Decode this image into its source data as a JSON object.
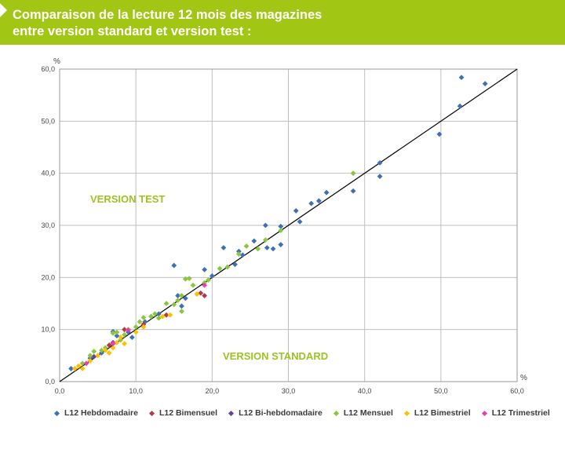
{
  "header": {
    "title_line1": "Comparaison de la lecture 12 mois des magazines",
    "title_line2": "entre version standard et version test :"
  },
  "annotations": {
    "version_test": "VERSION TEST",
    "version_standard": "VERSION STANDARD"
  },
  "colors": {
    "header_bg": "#a2c614",
    "annotation": "#9bc322",
    "grid": "#bfbfbf",
    "reference_line": "#000000"
  },
  "chart_data": {
    "type": "scatter",
    "xlabel": "%",
    "ylabel": "%",
    "xlim": [
      0,
      60
    ],
    "ylim": [
      0,
      60
    ],
    "x_ticks": [
      "0,0",
      "10,0",
      "20,0",
      "30,0",
      "40,0",
      "50,0",
      "60,0"
    ],
    "y_ticks": [
      "0,0",
      "10,0",
      "20,0",
      "30,0",
      "40,0",
      "50,0",
      "60,0"
    ],
    "grid": true,
    "reference_line": [
      [
        0,
        0
      ],
      [
        60,
        60
      ]
    ],
    "legend_position": "bottom",
    "series": [
      {
        "name": "L12 Hebdomadaire",
        "color": "#3f6fb5",
        "points": [
          [
            1.5,
            2.5
          ],
          [
            4,
            4.5
          ],
          [
            5.5,
            5.5
          ],
          [
            7,
            9.6
          ],
          [
            7.5,
            8.8
          ],
          [
            9,
            9.5
          ],
          [
            9.5,
            8.5
          ],
          [
            11.2,
            11.5
          ],
          [
            12,
            12.5
          ],
          [
            13,
            13
          ],
          [
            15,
            22.3
          ],
          [
            15.5,
            16.5
          ],
          [
            16,
            14.5
          ],
          [
            16.5,
            16
          ],
          [
            19,
            21.5
          ],
          [
            20,
            20.3
          ],
          [
            21.5,
            25.7
          ],
          [
            23,
            22.5
          ],
          [
            23.5,
            25
          ],
          [
            24,
            24.3
          ],
          [
            25.5,
            27
          ],
          [
            27,
            30
          ],
          [
            27.2,
            25.7
          ],
          [
            28,
            25.5
          ],
          [
            29,
            29.8
          ],
          [
            29,
            26.3
          ],
          [
            31,
            32.8
          ],
          [
            31.5,
            30.7
          ],
          [
            33,
            34.2
          ],
          [
            34,
            34.7
          ],
          [
            35,
            36.3
          ],
          [
            38.5,
            36.6
          ],
          [
            42,
            42
          ],
          [
            42,
            39.4
          ],
          [
            49.8,
            47.5
          ],
          [
            52.5,
            52.9
          ],
          [
            52.7,
            58.4
          ],
          [
            55.8,
            57.2
          ]
        ]
      },
      {
        "name": "L12 Bimensuel",
        "color": "#b23c46",
        "points": [
          [
            6.5,
            7
          ],
          [
            8.5,
            10
          ],
          [
            11,
            11
          ],
          [
            14,
            12.8
          ],
          [
            18.5,
            17
          ],
          [
            19,
            16.5
          ]
        ]
      },
      {
        "name": "L12 Bi-hebdomadaire",
        "color": "#6b3fa0",
        "points": [
          [
            4.5,
            4.8
          ],
          [
            7,
            7.5
          ]
        ]
      },
      {
        "name": "L12 Mensuel",
        "color": "#8cc63f",
        "points": [
          [
            3,
            3.5
          ],
          [
            4,
            5
          ],
          [
            4.5,
            5.8
          ],
          [
            5.5,
            6
          ],
          [
            6,
            6.5
          ],
          [
            7,
            9.3
          ],
          [
            7.5,
            9.5
          ],
          [
            8,
            8
          ],
          [
            8.5,
            9
          ],
          [
            9,
            10
          ],
          [
            10,
            10.5
          ],
          [
            10.5,
            11.5
          ],
          [
            11,
            12.3
          ],
          [
            12,
            12.5
          ],
          [
            12.5,
            13
          ],
          [
            13,
            12.2
          ],
          [
            14,
            15
          ],
          [
            15,
            14.8
          ],
          [
            15.5,
            15.6
          ],
          [
            16,
            16.5
          ],
          [
            16.5,
            19.7
          ],
          [
            17,
            19.8
          ],
          [
            17.5,
            18.5
          ],
          [
            16,
            13.5
          ],
          [
            19,
            19
          ],
          [
            19.5,
            19.5
          ],
          [
            21,
            21.7
          ],
          [
            22,
            22
          ],
          [
            23.5,
            24.5
          ],
          [
            24.5,
            26
          ],
          [
            26,
            25.5
          ],
          [
            27,
            27.2
          ],
          [
            29,
            29
          ],
          [
            38.5,
            40
          ]
        ]
      },
      {
        "name": "L12 Bimestriel",
        "color": "#ffc000",
        "points": [
          [
            2,
            2.5
          ],
          [
            2.5,
            3
          ],
          [
            3,
            2.5
          ],
          [
            4,
            4
          ],
          [
            5,
            5
          ],
          [
            6,
            6
          ],
          [
            6.5,
            5.5
          ],
          [
            7,
            6.5
          ],
          [
            7.5,
            7.5
          ],
          [
            8,
            8.5
          ],
          [
            8.5,
            7.3
          ],
          [
            10,
            9.5
          ],
          [
            11,
            10.5
          ],
          [
            13.5,
            12.5
          ],
          [
            14.5,
            12.8
          ],
          [
            18,
            16.8
          ]
        ]
      },
      {
        "name": "L12 Trimestriel",
        "color": "#e83fae",
        "points": [
          [
            3.5,
            3.5
          ],
          [
            7,
            7.3
          ],
          [
            9,
            9.9
          ],
          [
            19,
            18.5
          ]
        ]
      }
    ]
  }
}
